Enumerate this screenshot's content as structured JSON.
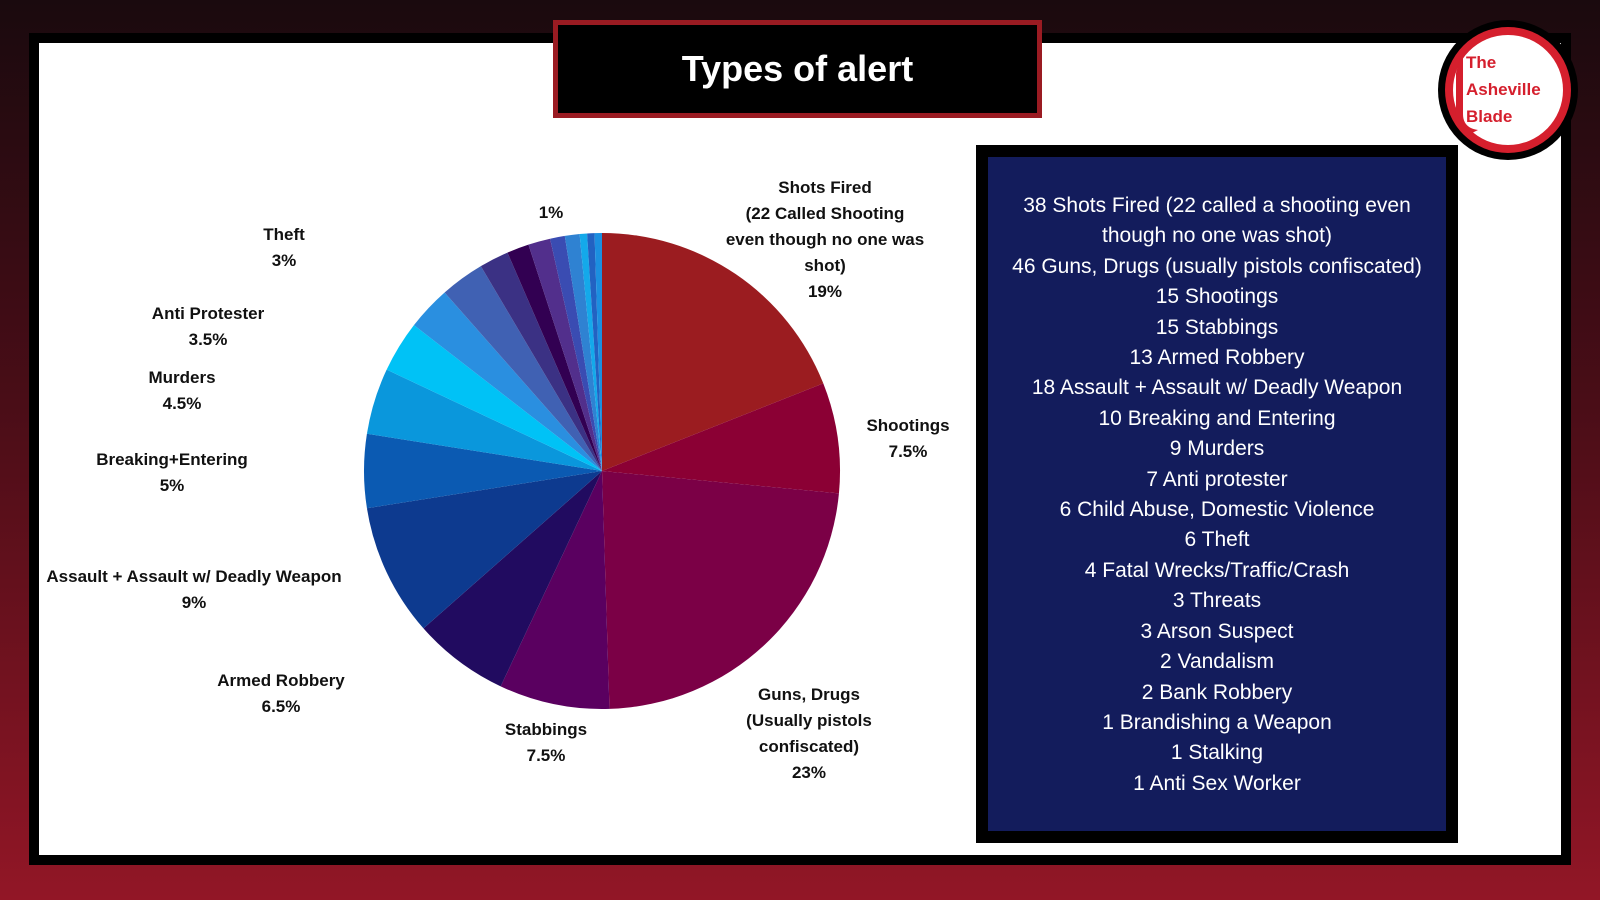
{
  "chart_data": {
    "type": "pie",
    "title": "Types of alert",
    "categories": [
      "Shots Fired\n(22 Called Shooting\neven though no one was\nshot)",
      "Shootings",
      "Guns, Drugs\n(Usually pistols\nconfiscated)",
      "Stabbings",
      "Armed Robbery",
      "Assault + Assault w/ Deadly Weapon",
      "Breaking+Entering",
      "Murders",
      "Anti Protester",
      "Theft",
      null,
      null,
      null,
      null,
      null,
      null,
      null,
      null,
      null
    ],
    "values": [
      19,
      7.5,
      23,
      7.5,
      6.5,
      9,
      5,
      4.5,
      3.5,
      3,
      3,
      2,
      1.5,
      1.5,
      1,
      1,
      0.5,
      0.5,
      0.5
    ],
    "value_labels": [
      "19%",
      "7.5%",
      "23%",
      "7.5%",
      "6.5%",
      "9%",
      "5%",
      "4.5%",
      "3.5%",
      "3%",
      null,
      null,
      null,
      null,
      null,
      "1%",
      null,
      null,
      null
    ],
    "colors": [
      "#9b1c20",
      "#8b0034",
      "#7b0046",
      "#5a0060",
      "#210b60",
      "#0d3a8f",
      "#0b5ab2",
      "#0a97dc",
      "#00c2f6",
      "#2a8fe0",
      "#4061b3",
      "#3b3184",
      "#320052",
      "#522f8c",
      "#3a4cb2",
      "#2f82d2",
      "#14a9ea",
      "#2262c2",
      "#1b8fe0"
    ]
  },
  "list_items": [
    "38 Shots Fired (22 called a shooting even though no one was shot)",
    "46 Guns, Drugs (usually pistols confiscated)",
    "15 Shootings",
    "15 Stabbings",
    "13 Armed Robbery",
    "18 Assault + Assault w/ Deadly Weapon",
    "10 Breaking and Entering",
    "9 Murders",
    "7 Anti protester",
    "6 Child Abuse, Domestic Violence",
    "6 Theft",
    "4 Fatal Wrecks/Traffic/Crash",
    "3 Threats",
    "3 Arson Suspect",
    "2 Vandalism",
    "2 Bank Robbery",
    "1 Brandishing a Weapon",
    "1 Stalking",
    "1 Anti Sex Worker"
  ],
  "logo": [
    "The",
    "Asheville",
    "Blade"
  ]
}
